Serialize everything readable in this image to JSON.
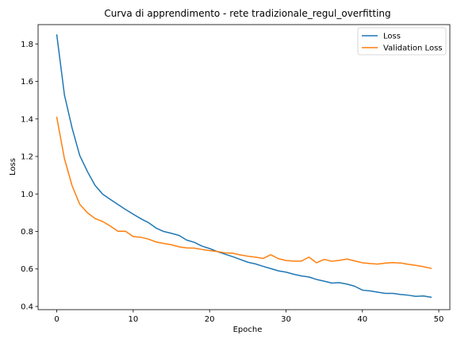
{
  "chart_data": {
    "type": "line",
    "title": "Curva di apprendimento - rete tradizionale_regul_overfitting",
    "xlabel": "Epoche",
    "ylabel": "Loss",
    "xlim": [
      -2.45,
      51.45
    ],
    "ylim": [
      0.383,
      1.903
    ],
    "xticks": [
      0,
      10,
      20,
      30,
      40,
      50
    ],
    "yticks": [
      0.4,
      0.6,
      0.8,
      1.0,
      1.2,
      1.4,
      1.6,
      1.8
    ],
    "ytick_labels": [
      "0.4",
      "0.6",
      "0.8",
      "1.0",
      "1.2",
      "1.4",
      "1.6",
      "1.8"
    ],
    "grid": false,
    "legend_position": "top-right",
    "x": [
      0,
      1,
      2,
      3,
      4,
      5,
      6,
      7,
      8,
      9,
      10,
      11,
      12,
      13,
      14,
      15,
      16,
      17,
      18,
      19,
      20,
      21,
      22,
      23,
      24,
      25,
      26,
      27,
      28,
      29,
      30,
      31,
      32,
      33,
      34,
      35,
      36,
      37,
      38,
      39,
      40,
      41,
      42,
      43,
      44,
      45,
      46,
      47,
      48,
      49
    ],
    "series": [
      {
        "name": "Loss",
        "color": "#1f77b4",
        "values": [
          1.848,
          1.528,
          1.352,
          1.205,
          1.12,
          1.046,
          0.999,
          0.971,
          0.944,
          0.917,
          0.892,
          0.868,
          0.847,
          0.818,
          0.8,
          0.79,
          0.779,
          0.754,
          0.742,
          0.722,
          0.709,
          0.693,
          0.679,
          0.666,
          0.651,
          0.636,
          0.627,
          0.614,
          0.602,
          0.59,
          0.583,
          0.572,
          0.563,
          0.557,
          0.544,
          0.535,
          0.525,
          0.527,
          0.519,
          0.508,
          0.487,
          0.483,
          0.476,
          0.47,
          0.47,
          0.464,
          0.46,
          0.454,
          0.456,
          0.449
        ]
      },
      {
        "name": "Validation Loss",
        "color": "#ff7f0e",
        "values": [
          1.408,
          1.188,
          1.044,
          0.945,
          0.9,
          0.869,
          0.853,
          0.829,
          0.801,
          0.801,
          0.773,
          0.769,
          0.759,
          0.744,
          0.736,
          0.729,
          0.718,
          0.712,
          0.711,
          0.704,
          0.698,
          0.693,
          0.686,
          0.684,
          0.675,
          0.668,
          0.663,
          0.656,
          0.676,
          0.655,
          0.645,
          0.642,
          0.642,
          0.663,
          0.633,
          0.651,
          0.641,
          0.646,
          0.653,
          0.643,
          0.633,
          0.629,
          0.626,
          0.631,
          0.634,
          0.632,
          0.625,
          0.619,
          0.612,
          0.603
        ]
      }
    ]
  }
}
